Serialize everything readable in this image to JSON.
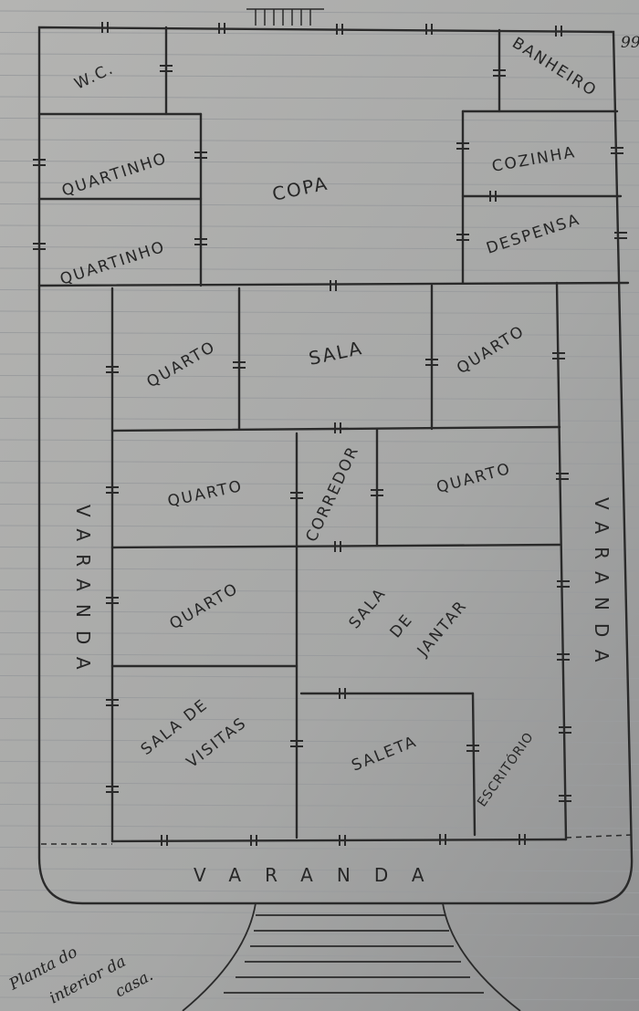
{
  "page_number": "99",
  "rooms": {
    "wc": "W.C.",
    "quartinho_1": "QUARTINHO",
    "quartinho_2": "QUARTINHO",
    "copa": "COPA",
    "banheiro": "BANHEIRO",
    "cozinha": "COZINHA",
    "despensa": "DESPENSA",
    "quarto_1": "QUARTO",
    "sala": "SALA",
    "quarto_2": "QUARTO",
    "quarto_3": "QUARTO",
    "corredor": "CORREDOR",
    "quarto_4": "QUARTO",
    "quarto_5": "QUARTO",
    "sala_de_jantar": [
      "SALA",
      "DE",
      "JANTAR"
    ],
    "sala_de_visitas": [
      "SALA DE",
      "VISITAS"
    ],
    "saleta": "SALETA",
    "escritorio": "ESCRITÓRIO",
    "varanda_left": "VARANDA",
    "varanda_right": "VARANDA",
    "varanda_bottom": "VARANDA"
  },
  "caption": [
    "Planta do",
    "interior da",
    "casa."
  ]
}
